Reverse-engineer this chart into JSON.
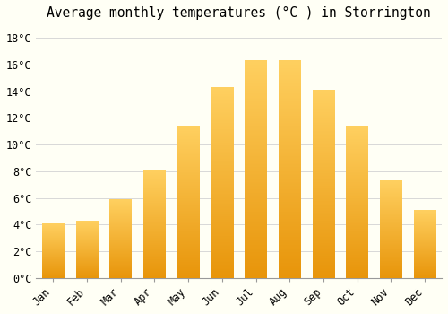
{
  "title": "Average monthly temperatures (°C ) in Storrington",
  "months": [
    "Jan",
    "Feb",
    "Mar",
    "Apr",
    "May",
    "Jun",
    "Jul",
    "Aug",
    "Sep",
    "Oct",
    "Nov",
    "Dec"
  ],
  "temperatures": [
    4.1,
    4.3,
    5.9,
    8.1,
    11.4,
    14.3,
    16.3,
    16.3,
    14.1,
    11.4,
    7.3,
    5.1
  ],
  "bar_color_bottom": "#E8950A",
  "bar_color_top": "#FFD060",
  "background_color": "#FFFFF5",
  "grid_color": "#D8D8D8",
  "ylim": [
    0,
    19
  ],
  "yticks": [
    0,
    2,
    4,
    6,
    8,
    10,
    12,
    14,
    16,
    18
  ],
  "ytick_labels": [
    "0°C",
    "2°C",
    "4°C",
    "6°C",
    "8°C",
    "10°C",
    "12°C",
    "14°C",
    "16°C",
    "18°C"
  ],
  "title_fontsize": 10.5,
  "tick_fontsize": 8.5,
  "font_family": "monospace",
  "bar_width": 0.65,
  "fig_width": 5.0,
  "fig_height": 3.5,
  "dpi": 100
}
